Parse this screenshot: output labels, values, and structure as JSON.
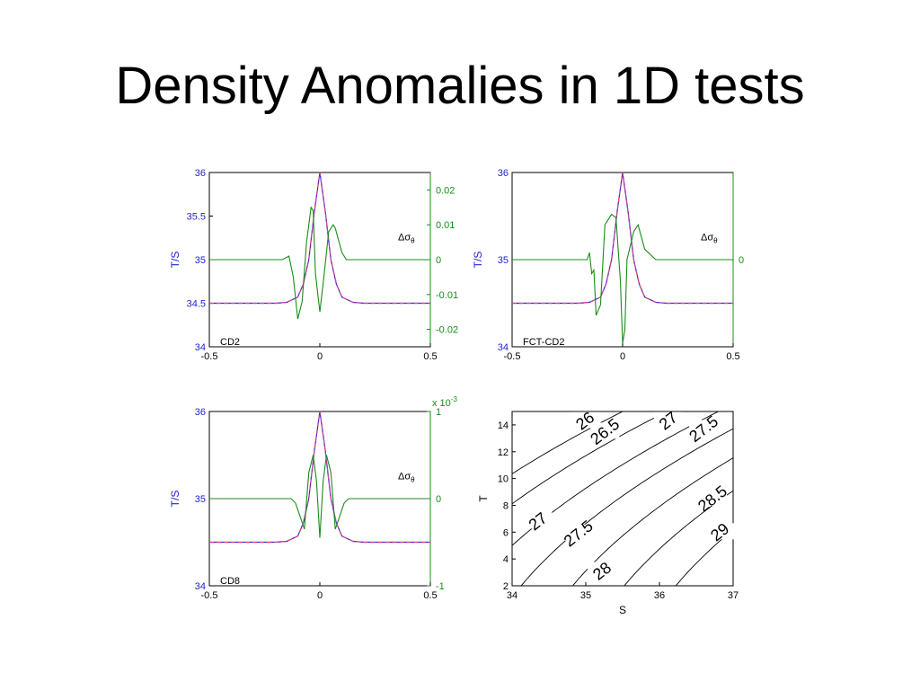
{
  "slide": {
    "title": "Density Anomalies in 1D tests"
  },
  "colors": {
    "left_axis": "#1f1fd2",
    "right_axis": "#1a8c1a",
    "dashed": "#e0407a",
    "solid": "#2a2ae6",
    "contour": "#000000"
  },
  "chart_data": [
    {
      "type": "line",
      "panel_label": "CD2",
      "ylabel": "T/S",
      "xlim": [
        -0.5,
        0.5
      ],
      "xticks": [
        "-0.5",
        "0",
        "0.5"
      ],
      "ylim": [
        34,
        36
      ],
      "yticks": [
        "34",
        "34.5",
        "35",
        "35.5",
        "36"
      ],
      "right_axis": {
        "ylim": [
          -0.025,
          0.025
        ],
        "yticks": [
          "-0.02",
          "-0.01",
          "0",
          "0.01",
          "0.02"
        ],
        "label": "Δσθ",
        "multiplier": ""
      },
      "series": [
        {
          "x": [
            -0.5,
            -0.2,
            -0.15,
            -0.1,
            -0.075,
            -0.05,
            -0.025,
            0,
            0.025,
            0.05,
            0.075,
            0.1,
            0.15,
            0.2,
            0.5
          ],
          "y": [
            34.5,
            34.5,
            34.51,
            34.57,
            34.72,
            35.0,
            35.55,
            36,
            35.55,
            35.0,
            34.72,
            34.57,
            34.51,
            34.5,
            34.5
          ]
        },
        {
          "axis": "right",
          "x": [
            -0.5,
            -0.17,
            -0.14,
            -0.12,
            -0.1,
            -0.08,
            -0.06,
            -0.04,
            -0.03,
            -0.02,
            0,
            0.02,
            0.04,
            0.06,
            0.07,
            0.1,
            0.12,
            0.15,
            0.5
          ],
          "y": [
            0,
            0,
            0.001,
            -0.005,
            -0.017,
            -0.012,
            0.005,
            0.015,
            0.014,
            -0.004,
            -0.015,
            -0.004,
            0.008,
            0.01,
            0.009,
            0.002,
            0,
            0,
            0
          ]
        }
      ]
    },
    {
      "type": "line",
      "panel_label": "FCT-CD2",
      "ylabel": "T/S",
      "xlim": [
        -0.5,
        0.5
      ],
      "xticks": [
        "-0.5",
        "0",
        "0.5"
      ],
      "ylim": [
        34,
        36
      ],
      "yticks": [
        "34",
        "35",
        "36"
      ],
      "right_axis": {
        "ylim": [
          -0.025,
          0.025
        ],
        "yticks": [
          "0"
        ],
        "label": "Δσθ",
        "multiplier": ""
      },
      "series": [
        {
          "x": [
            -0.5,
            -0.2,
            -0.15,
            -0.1,
            -0.075,
            -0.05,
            -0.025,
            0,
            0.025,
            0.05,
            0.075,
            0.1,
            0.15,
            0.2,
            0.5
          ],
          "y": [
            34.5,
            34.5,
            34.51,
            34.57,
            34.72,
            35.0,
            35.55,
            36,
            35.55,
            35.0,
            34.72,
            34.57,
            34.51,
            34.5,
            34.5
          ]
        },
        {
          "axis": "right",
          "x": [
            -0.5,
            -0.16,
            -0.15,
            -0.14,
            -0.13,
            -0.12,
            -0.1,
            -0.08,
            -0.05,
            -0.03,
            -0.01,
            0,
            0.01,
            0.02,
            0.05,
            0.07,
            0.1,
            0.15,
            0.5
          ],
          "y": [
            0,
            0,
            0.002,
            -0.004,
            -0.003,
            -0.016,
            -0.013,
            0.01,
            0.013,
            0.012,
            -0.006,
            -0.024,
            -0.02,
            0.0,
            0.008,
            0.01,
            0.003,
            0,
            0
          ]
        }
      ]
    },
    {
      "type": "line",
      "panel_label": "CD8",
      "ylabel": "T/S",
      "xlim": [
        -0.5,
        0.5
      ],
      "xticks": [
        "-0.5",
        "0",
        "0.5"
      ],
      "ylim": [
        34,
        36
      ],
      "yticks": [
        "34",
        "35",
        "36"
      ],
      "right_axis": {
        "ylim": [
          -1,
          1
        ],
        "yticks": [
          "-1",
          "0",
          "1"
        ],
        "label": "Δσθ",
        "multiplier": "x 10-3"
      },
      "series": [
        {
          "x": [
            -0.5,
            -0.2,
            -0.15,
            -0.1,
            -0.075,
            -0.05,
            -0.025,
            0,
            0.025,
            0.05,
            0.075,
            0.1,
            0.15,
            0.2,
            0.5
          ],
          "y": [
            34.5,
            34.5,
            34.51,
            34.57,
            34.72,
            35.0,
            35.55,
            36,
            35.55,
            35.0,
            34.72,
            34.57,
            34.51,
            34.5,
            34.5
          ]
        },
        {
          "axis": "right",
          "x": [
            -0.5,
            -0.13,
            -0.11,
            -0.09,
            -0.07,
            -0.05,
            -0.03,
            -0.015,
            0,
            0.015,
            0.03,
            0.05,
            0.07,
            0.09,
            0.11,
            0.13,
            0.5
          ],
          "y": [
            0,
            0,
            -0.05,
            -0.2,
            -0.35,
            0.3,
            0.5,
            0.2,
            -0.45,
            0.2,
            0.5,
            0.3,
            -0.35,
            -0.2,
            -0.05,
            0,
            0
          ]
        }
      ]
    },
    {
      "type": "contour",
      "xlabel": "S",
      "ylabel": "T",
      "xlim": [
        34,
        37
      ],
      "xticks": [
        "34",
        "35",
        "36",
        "37"
      ],
      "ylim": [
        2,
        15
      ],
      "yticks": [
        "2",
        "4",
        "6",
        "8",
        "10",
        "12",
        "14"
      ],
      "levels": [
        "26",
        "26.5",
        "27",
        "27.5",
        "28",
        "28.5",
        "29"
      ],
      "level_labels": [
        {
          "text": "26",
          "s": 34.99,
          "t": 14.3
        },
        {
          "text": "26.5",
          "s": 35.26,
          "t": 13.5
        },
        {
          "text": "27",
          "s": 36.12,
          "t": 14.3
        },
        {
          "text": "27.5",
          "s": 36.6,
          "t": 13.7
        },
        {
          "text": "27",
          "s": 34.35,
          "t": 6.8
        },
        {
          "text": "27.5",
          "s": 34.9,
          "t": 5.9
        },
        {
          "text": "28",
          "s": 35.22,
          "t": 3.1
        },
        {
          "text": "28.5",
          "s": 36.72,
          "t": 8.5
        },
        {
          "text": "29",
          "s": 36.82,
          "t": 6.0
        }
      ]
    }
  ]
}
